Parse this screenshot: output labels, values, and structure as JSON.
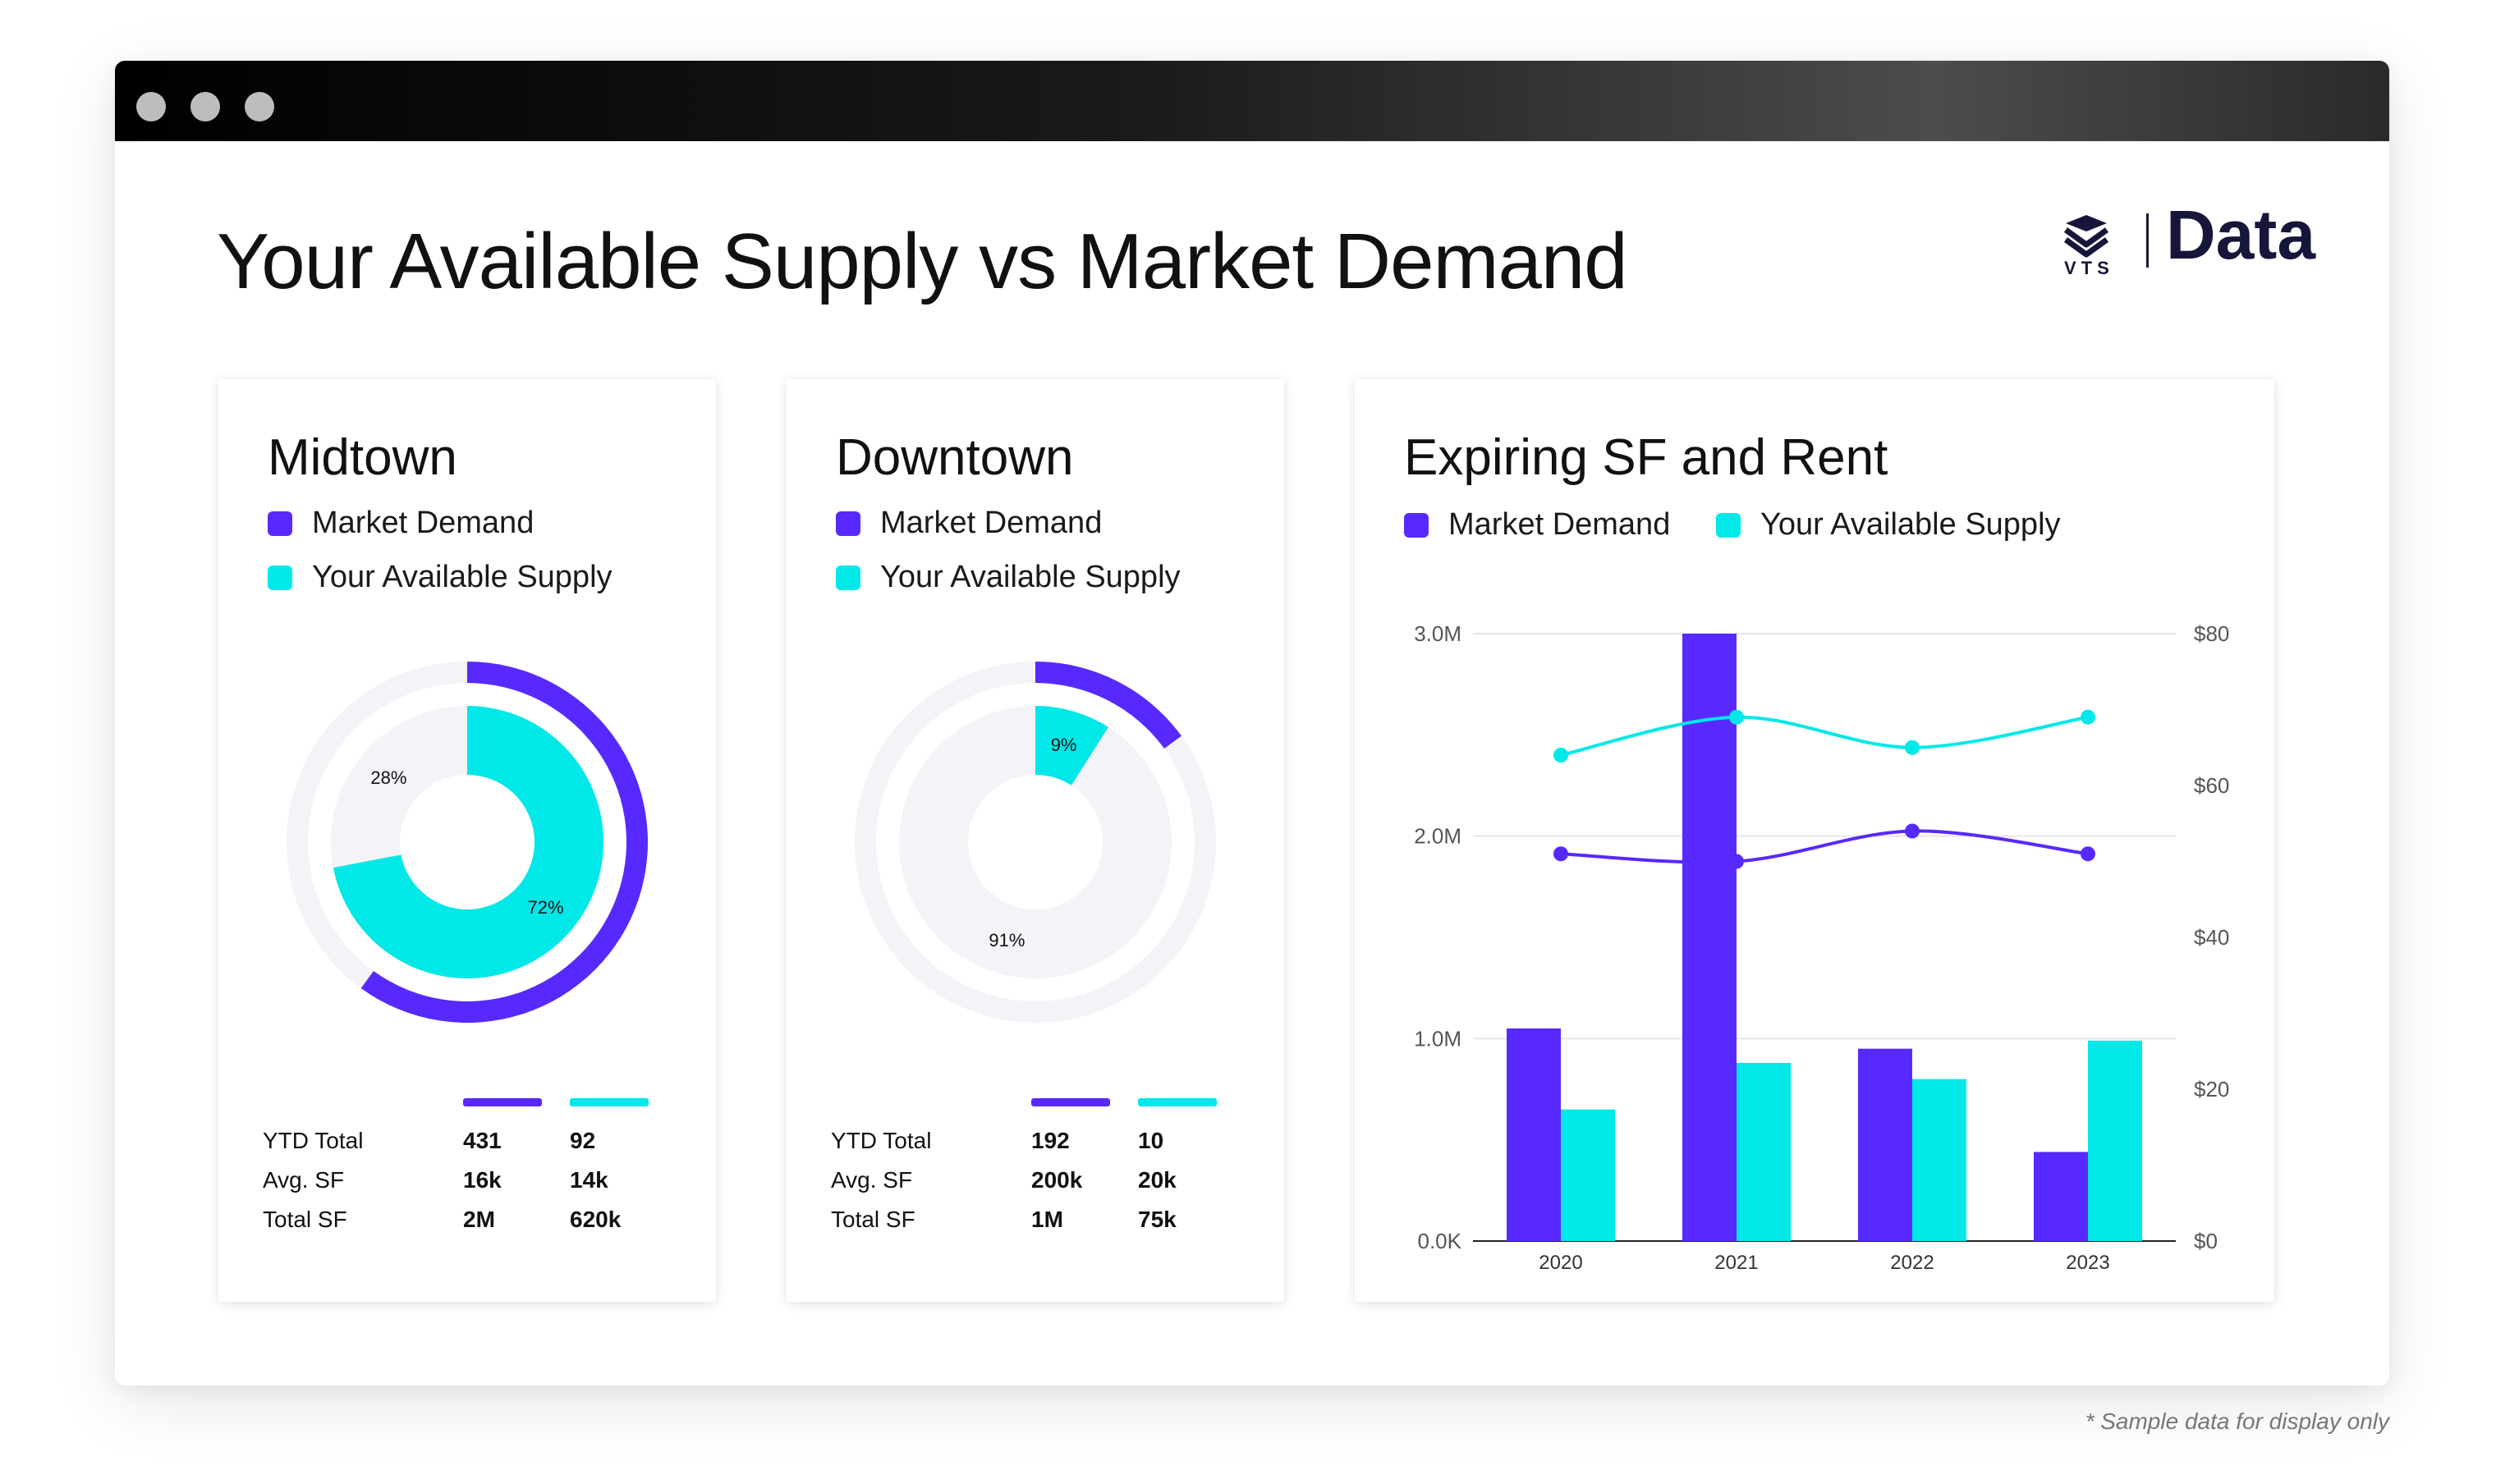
{
  "page": {
    "title": "Your Available Supply vs Market Demand",
    "brand": {
      "mark": "VTS",
      "product": "Data"
    },
    "footnote": "* Sample data for display only"
  },
  "colors": {
    "demand": "#5729FF",
    "supply": "#00E8E8",
    "track": "#F3F3F8"
  },
  "legend": {
    "demand": "Market Demand",
    "supply": "Your Available Supply"
  },
  "midtown": {
    "title": "Midtown",
    "outer_pct": 0.6,
    "inner_supply_pct": 72,
    "inner_other_pct": 28,
    "label_supply": "72%",
    "label_other": "28%",
    "rows": [
      {
        "label": "YTD Total",
        "demand": "431",
        "supply": "92"
      },
      {
        "label": "Avg. SF",
        "demand": "16k",
        "supply": "14k"
      },
      {
        "label": "Total SF",
        "demand": "2M",
        "supply": "620k"
      }
    ]
  },
  "downtown": {
    "title": "Downtown",
    "outer_pct": 0.15,
    "inner_supply_pct": 9,
    "inner_other_pct": 91,
    "label_supply": "9%",
    "label_other": "91%",
    "rows": [
      {
        "label": "YTD Total",
        "demand": "192",
        "supply": "10"
      },
      {
        "label": "Avg. SF",
        "demand": "200k",
        "supply": "20k"
      },
      {
        "label": "Total SF",
        "demand": "1M",
        "supply": "75k"
      }
    ]
  },
  "expiring": {
    "title": "Expiring SF and Rent"
  },
  "chart_data": {
    "type": "bar",
    "title": "Expiring SF and Rent",
    "categories": [
      "2020",
      "2021",
      "2022",
      "2023"
    ],
    "series": [
      {
        "name": "Market Demand",
        "type": "bar",
        "axis": "left",
        "values": [
          1050000,
          3000000,
          950000,
          440000
        ]
      },
      {
        "name": "Your Available Supply",
        "type": "bar",
        "axis": "left",
        "values": [
          650000,
          880000,
          800000,
          990000
        ]
      },
      {
        "name": "Market Demand",
        "type": "line",
        "axis": "right",
        "values": [
          51,
          50,
          54,
          51
        ]
      },
      {
        "name": "Your Available Supply",
        "type": "line",
        "axis": "right",
        "values": [
          64,
          69,
          65,
          69
        ]
      }
    ],
    "ylim": [
      0,
      3000000
    ],
    "y_ticks": [
      "0.0K",
      "1.0M",
      "2.0M",
      "3.0M"
    ],
    "y2lim": [
      0,
      80
    ],
    "y2_ticks": [
      "$0",
      "$20",
      "$40",
      "$60",
      "$80"
    ],
    "grid": true,
    "legend_position": "top-left"
  }
}
